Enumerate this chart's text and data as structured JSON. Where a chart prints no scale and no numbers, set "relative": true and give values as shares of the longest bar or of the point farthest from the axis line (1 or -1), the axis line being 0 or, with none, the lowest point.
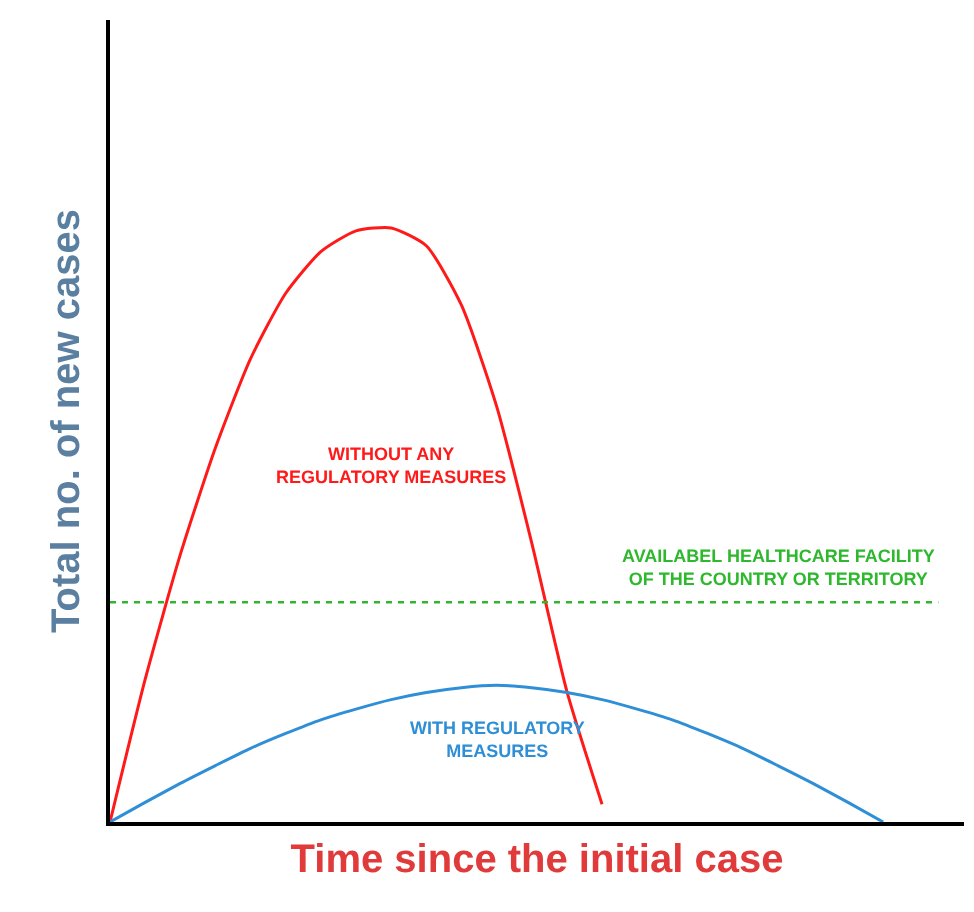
{
  "chart_data": {
    "type": "line",
    "relative": true,
    "xlabel": "Time since the initial case",
    "ylabel": "Total no. of new cases",
    "categories": [
      null,
      null,
      null,
      null,
      null,
      null,
      null,
      null,
      null,
      null,
      null,
      null,
      null,
      null,
      null,
      null,
      null,
      null,
      null,
      null,
      null,
      null,
      null,
      null,
      null
    ],
    "series": [
      {
        "name": "WITHOUT ANY REGULATORY MEASURES",
        "color": "#ff1a1a",
        "values": [
          0,
          0.24,
          0.45,
          0.63,
          0.78,
          0.89,
          0.96,
          0.995,
          1.0,
          0.97,
          0.87,
          0.7,
          0.47,
          0.22,
          0.03,
          null,
          null,
          null,
          null,
          null,
          null,
          null,
          null,
          null,
          null
        ]
      },
      {
        "name": "WITH REGULATORY MEASURES",
        "color": "#2f8fd6",
        "values": [
          0,
          0.033,
          0.065,
          0.095,
          0.124,
          0.149,
          0.172,
          0.19,
          0.206,
          0.218,
          0.226,
          0.23,
          0.226,
          0.218,
          0.206,
          0.19,
          0.172,
          0.149,
          0.124,
          0.095,
          0.065,
          0.033,
          0,
          null,
          null
        ]
      }
    ],
    "ref_lines": [
      {
        "axis": "y",
        "value": 0.37,
        "label": "AVAILABEL HEALTHCARE FACILITY OF THE COUNTRY OR TERRITORY",
        "color": "#2db82d",
        "line_style": "dotted"
      }
    ],
    "legend": false,
    "marker": "none",
    "line_style": "solid"
  }
}
